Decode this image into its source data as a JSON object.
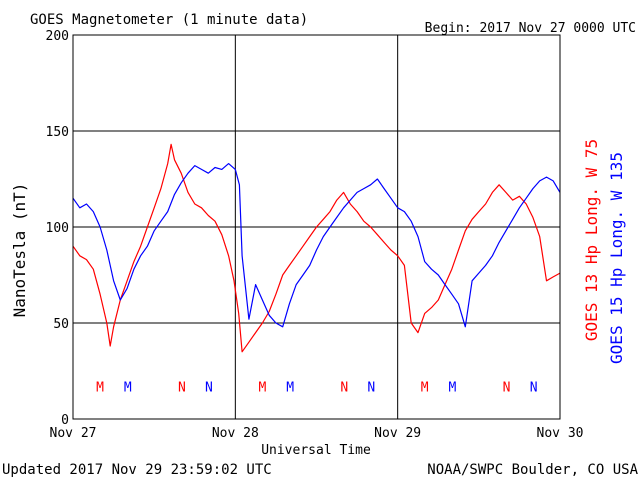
{
  "chart_data": {
    "type": "line",
    "title": "GOES Magnetometer (1 minute data)",
    "begin_label": "Begin:  2017 Nov 27 0000 UTC",
    "xlabel": "Universal Time",
    "ylabel": "NanoTesla (nT)",
    "ylim": [
      0,
      200
    ],
    "yticks": [
      0,
      50,
      100,
      150,
      200
    ],
    "xlim": [
      0,
      72
    ],
    "x_unit": "hours since 2017 Nov 27 0000 UTC",
    "xticks": [
      {
        "x": 0,
        "label": "Nov 27"
      },
      {
        "x": 24,
        "label": "Nov 28"
      },
      {
        "x": 48,
        "label": "Nov 29"
      },
      {
        "x": 72,
        "label": "Nov 30"
      }
    ],
    "grid": true,
    "updated_label": "Updated 2017 Nov 29 23:59:02 UTC",
    "credit_label": "NOAA/SWPC Boulder, CO USA",
    "series": [
      {
        "name": "GOES 13 Hp  Long. W 75",
        "color": "#ff0000",
        "x": [
          0,
          1,
          2,
          3,
          4,
          5,
          5.5,
          6,
          7,
          8,
          9,
          10,
          11,
          12,
          13,
          14,
          14.5,
          15,
          16,
          17,
          18,
          19,
          20,
          21,
          22,
          23,
          23.8,
          24.5,
          25,
          26,
          27,
          28,
          29,
          30,
          31,
          32,
          33,
          34,
          35,
          36,
          37,
          38,
          39,
          40,
          41,
          42,
          43,
          44,
          45,
          46,
          47,
          48,
          49,
          50,
          51,
          52,
          53,
          54,
          55,
          56,
          57,
          58,
          59,
          60,
          61,
          62,
          63,
          64,
          65,
          66,
          67,
          68,
          69,
          70,
          71,
          72
        ],
        "values": [
          90,
          85,
          83,
          78,
          65,
          50,
          38,
          48,
          62,
          72,
          82,
          90,
          100,
          110,
          120,
          133,
          143,
          135,
          128,
          118,
          112,
          110,
          106,
          103,
          96,
          85,
          72,
          55,
          35,
          40,
          45,
          50,
          56,
          65,
          75,
          80,
          85,
          90,
          95,
          100,
          104,
          108,
          114,
          118,
          112,
          108,
          103,
          100,
          96,
          92,
          88,
          85,
          80,
          50,
          45,
          55,
          58,
          62,
          70,
          78,
          88,
          98,
          104,
          108,
          112,
          118,
          122,
          118,
          114,
          116,
          112,
          105,
          95,
          72,
          74,
          76
        ]
      },
      {
        "name": "GOES 15 Hp  Long. W 135",
        "color": "#0000ff",
        "x": [
          0,
          1,
          2,
          3,
          4,
          5,
          6,
          7,
          8,
          9,
          10,
          11,
          12,
          13,
          14,
          15,
          16,
          17,
          18,
          19,
          20,
          21,
          22,
          23,
          24,
          24.6,
          25,
          26,
          27,
          28,
          29,
          30,
          31,
          32,
          33,
          34,
          35,
          36,
          37,
          38,
          39,
          40,
          41,
          42,
          43,
          44,
          45,
          46,
          47,
          48,
          49,
          50,
          51,
          52,
          53,
          54,
          55,
          56,
          57,
          58,
          59,
          60,
          61,
          62,
          63,
          64,
          65,
          66,
          67,
          68,
          69,
          70,
          71,
          72
        ],
        "values": [
          115,
          110,
          112,
          108,
          100,
          88,
          72,
          62,
          68,
          78,
          85,
          90,
          98,
          103,
          108,
          117,
          123,
          128,
          132,
          130,
          128,
          131,
          130,
          133,
          130,
          122,
          85,
          52,
          70,
          62,
          54,
          50,
          48,
          60,
          70,
          75,
          80,
          88,
          95,
          100,
          105,
          110,
          114,
          118,
          120,
          122,
          125,
          120,
          115,
          110,
          108,
          103,
          95,
          82,
          78,
          75,
          70,
          65,
          60,
          48,
          72,
          76,
          80,
          85,
          92,
          98,
          104,
          110,
          115,
          120,
          124,
          126,
          124,
          118
        ]
      }
    ],
    "markers": {
      "value": 17,
      "items": [
        {
          "x": 4.0,
          "label": "M",
          "color": "#ff0000"
        },
        {
          "x": 8.1,
          "label": "M",
          "color": "#0000ff"
        },
        {
          "x": 16.1,
          "label": "N",
          "color": "#ff0000"
        },
        {
          "x": 20.1,
          "label": "N",
          "color": "#0000ff"
        },
        {
          "x": 28.0,
          "label": "M",
          "color": "#ff0000"
        },
        {
          "x": 32.1,
          "label": "M",
          "color": "#0000ff"
        },
        {
          "x": 40.1,
          "label": "N",
          "color": "#ff0000"
        },
        {
          "x": 44.1,
          "label": "N",
          "color": "#0000ff"
        },
        {
          "x": 52.0,
          "label": "M",
          "color": "#ff0000"
        },
        {
          "x": 56.1,
          "label": "M",
          "color": "#0000ff"
        },
        {
          "x": 64.1,
          "label": "N",
          "color": "#ff0000"
        },
        {
          "x": 68.1,
          "label": "N",
          "color": "#0000ff"
        }
      ]
    }
  }
}
